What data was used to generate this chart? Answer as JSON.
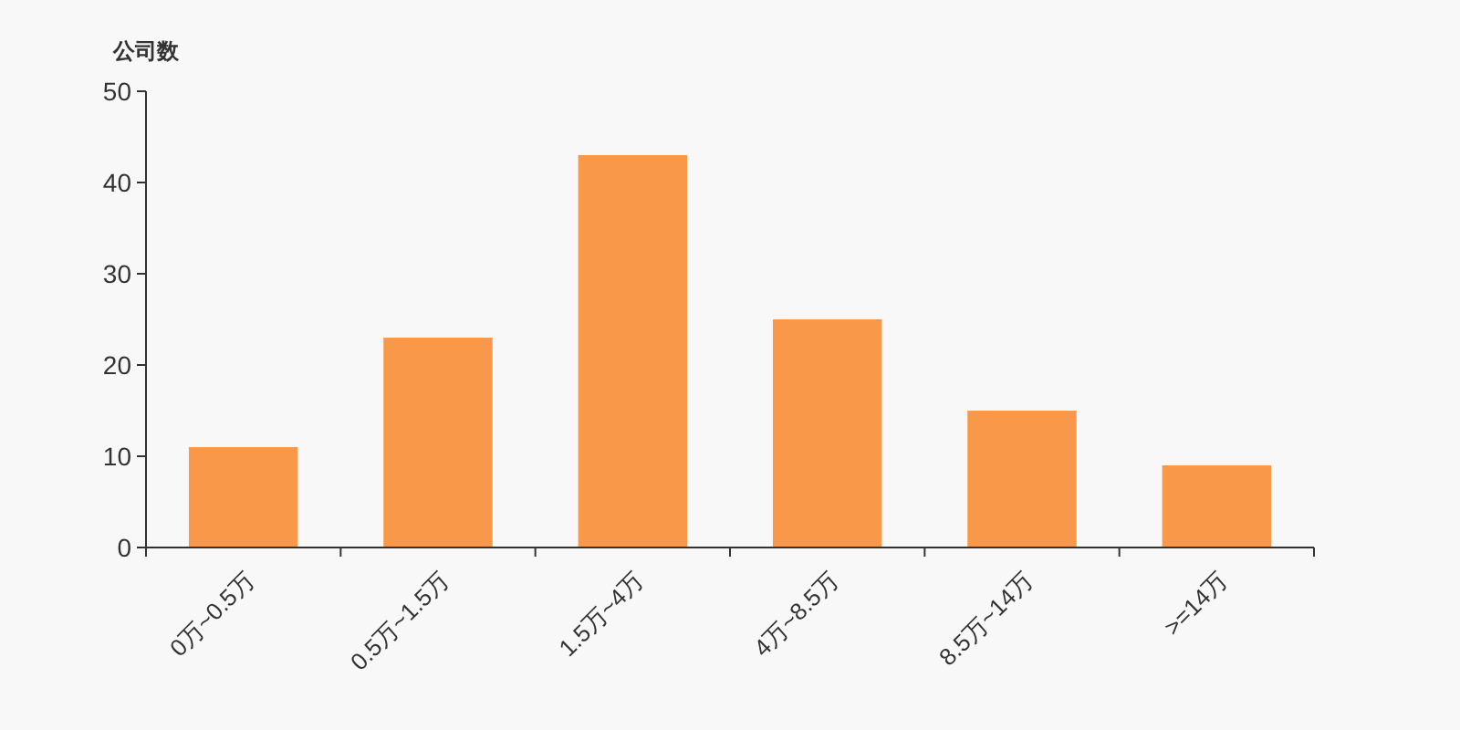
{
  "chart_data": {
    "type": "bar",
    "ylabel": "公司数",
    "categories": [
      "0万~0.5万",
      "0.5万~1.5万",
      "1.5万~4万",
      "4万~8.5万",
      "8.5万~14万",
      ">=14万"
    ],
    "values": [
      11,
      23,
      43,
      25,
      15,
      9
    ],
    "color": "#f89848",
    "ylim": [
      0,
      50
    ],
    "yticks": [
      0,
      10,
      20,
      30,
      40,
      50
    ],
    "grid": false
  }
}
